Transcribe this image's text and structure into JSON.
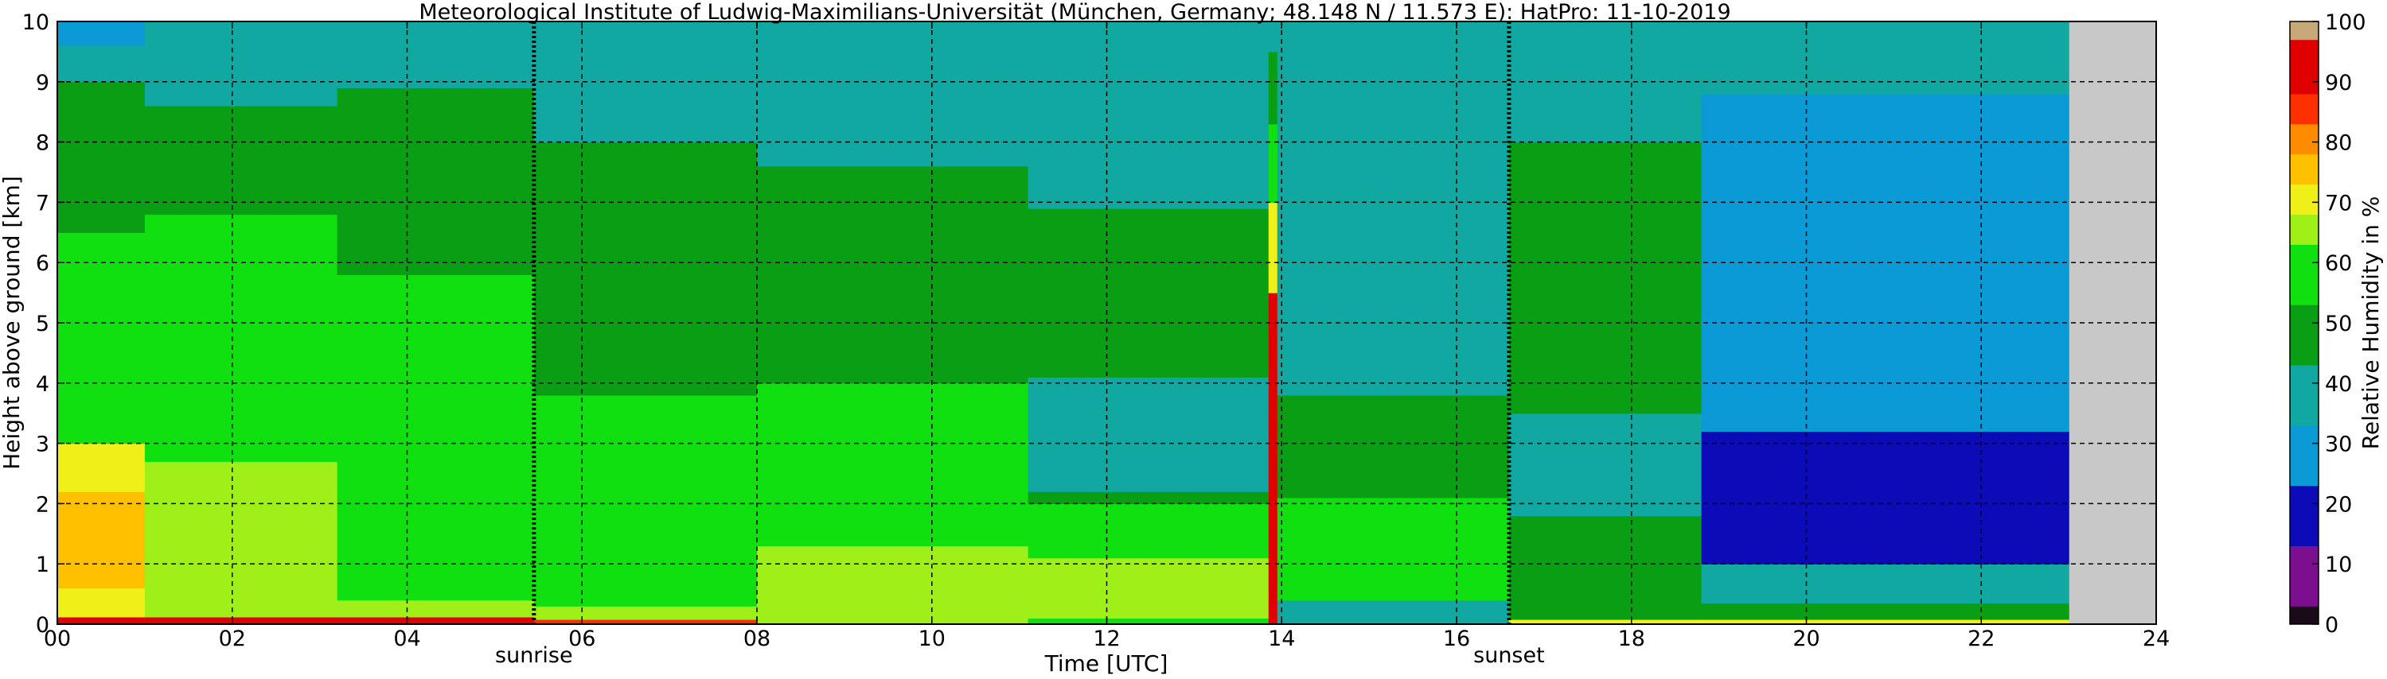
{
  "chart_data": {
    "type": "heatmap",
    "title": "Meteorological Institute of Ludwig-Maximilians-Universität (München, Germany; 48.148 N / 11.573 E):    HatPro: 11-10-2019",
    "xlabel": "Time [UTC]",
    "ylabel": "Height above ground [km]",
    "xlim": [
      0,
      24
    ],
    "ylim": [
      0,
      10
    ],
    "x_ticks": [
      0,
      2,
      4,
      6,
      8,
      10,
      12,
      14,
      16,
      18,
      20,
      22,
      24
    ],
    "x_tick_labels": [
      "00",
      "02",
      "04",
      "06",
      "08",
      "10",
      "12",
      "14",
      "16",
      "18",
      "20",
      "22",
      "24"
    ],
    "y_ticks": [
      0,
      1,
      2,
      3,
      4,
      5,
      6,
      7,
      8,
      9,
      10
    ],
    "y_tick_labels": [
      "0",
      "1",
      "2",
      "3",
      "4",
      "5",
      "6",
      "7",
      "8",
      "9",
      "10"
    ],
    "grid": true,
    "data_end_time": 23.0,
    "markers": [
      {
        "label": "sunrise",
        "time": 5.45
      },
      {
        "label": "sunset",
        "time": 16.6
      }
    ],
    "colorbar": {
      "label": "Relative Humidity in %",
      "min": 0,
      "max": 100,
      "tick_values": [
        0,
        10,
        20,
        30,
        40,
        50,
        60,
        70,
        80,
        90,
        100
      ],
      "tick_labels": [
        "0",
        "10",
        "20",
        "30",
        "40",
        "50",
        "60",
        "70",
        "80",
        "90",
        "100"
      ],
      "levels": [
        {
          "from": 0,
          "to": 3,
          "color": "#1a0a1a"
        },
        {
          "from": 3,
          "to": 13,
          "color": "#7b0f8f"
        },
        {
          "from": 13,
          "to": 23,
          "color": "#0b0bb8"
        },
        {
          "from": 23,
          "to": 33,
          "color": "#0a9ad6"
        },
        {
          "from": 33,
          "to": 43,
          "color": "#10a8a0"
        },
        {
          "from": 43,
          "to": 53,
          "color": "#0a9e14"
        },
        {
          "from": 53,
          "to": 63,
          "color": "#10e010"
        },
        {
          "from": 63,
          "to": 68,
          "color": "#9ef018"
        },
        {
          "from": 68,
          "to": 73,
          "color": "#f0f018"
        },
        {
          "from": 73,
          "to": 78,
          "color": "#ffc000"
        },
        {
          "from": 78,
          "to": 83,
          "color": "#ff8c00"
        },
        {
          "from": 83,
          "to": 88,
          "color": "#ff3000"
        },
        {
          "from": 88,
          "to": 97,
          "color": "#e00000"
        },
        {
          "from": 97,
          "to": 100,
          "color": "#c8a878"
        }
      ]
    },
    "humidity_layers": [
      {
        "t_start": 0.0,
        "t_end": 1.0,
        "layers": [
          [
            0.0,
            0.12,
            92
          ],
          [
            0.12,
            0.6,
            68
          ],
          [
            0.6,
            2.2,
            75
          ],
          [
            2.2,
            3.0,
            68
          ],
          [
            3.0,
            6.5,
            58
          ],
          [
            6.5,
            7.8,
            50
          ],
          [
            7.8,
            9.0,
            45
          ],
          [
            9.0,
            9.6,
            38
          ],
          [
            9.6,
            10.0,
            30
          ]
        ]
      },
      {
        "t_start": 1.0,
        "t_end": 3.2,
        "layers": [
          [
            0.0,
            0.12,
            92
          ],
          [
            0.12,
            0.5,
            67
          ],
          [
            0.5,
            2.7,
            67
          ],
          [
            2.7,
            6.8,
            58
          ],
          [
            6.8,
            8.6,
            50
          ],
          [
            8.6,
            9.4,
            40
          ],
          [
            9.4,
            10.0,
            33
          ]
        ]
      },
      {
        "t_start": 3.2,
        "t_end": 5.45,
        "layers": [
          [
            0.0,
            0.12,
            90
          ],
          [
            0.12,
            0.4,
            66
          ],
          [
            0.4,
            2.3,
            62
          ],
          [
            2.3,
            5.8,
            57
          ],
          [
            5.8,
            7.9,
            50
          ],
          [
            7.9,
            8.9,
            45
          ],
          [
            8.9,
            9.6,
            38
          ],
          [
            9.6,
            10.0,
            33
          ]
        ]
      },
      {
        "t_start": 5.45,
        "t_end": 8.0,
        "layers": [
          [
            0.0,
            0.08,
            85
          ],
          [
            0.08,
            0.3,
            66
          ],
          [
            0.3,
            3.8,
            57
          ],
          [
            3.8,
            6.6,
            52
          ],
          [
            6.6,
            8.0,
            48
          ],
          [
            8.0,
            9.3,
            42
          ],
          [
            9.3,
            10.0,
            36
          ]
        ]
      },
      {
        "t_start": 8.0,
        "t_end": 11.1,
        "layers": [
          [
            0.0,
            0.1,
            64
          ],
          [
            0.1,
            1.3,
            66
          ],
          [
            1.3,
            2.6,
            58
          ],
          [
            2.6,
            4.0,
            56
          ],
          [
            4.0,
            5.0,
            52
          ],
          [
            5.0,
            7.6,
            48
          ],
          [
            7.6,
            9.0,
            42
          ],
          [
            9.0,
            10.0,
            38
          ]
        ]
      },
      {
        "t_start": 11.1,
        "t_end": 13.85,
        "layers": [
          [
            0.0,
            0.1,
            62
          ],
          [
            0.1,
            1.1,
            64
          ],
          [
            1.1,
            2.0,
            58
          ],
          [
            2.0,
            2.2,
            50
          ],
          [
            2.2,
            4.1,
            40
          ],
          [
            4.1,
            6.9,
            48
          ],
          [
            6.9,
            8.8,
            42
          ],
          [
            8.8,
            10.0,
            38
          ]
        ]
      },
      {
        "t_start": 13.85,
        "t_end": 13.95,
        "layers": [
          [
            0.0,
            0.5,
            92
          ],
          [
            0.5,
            5.5,
            88
          ],
          [
            5.5,
            7.0,
            70
          ],
          [
            7.0,
            8.3,
            62
          ],
          [
            8.3,
            9.5,
            52
          ],
          [
            9.5,
            10.0,
            40
          ]
        ]
      },
      {
        "t_start": 13.95,
        "t_end": 16.6,
        "layers": [
          [
            0.0,
            0.4,
            40
          ],
          [
            0.4,
            2.1,
            56
          ],
          [
            2.1,
            3.8,
            46
          ],
          [
            3.8,
            7.0,
            42
          ],
          [
            7.0,
            9.0,
            40
          ],
          [
            9.0,
            10.0,
            36
          ]
        ]
      },
      {
        "t_start": 16.6,
        "t_end": 18.8,
        "layers": [
          [
            0.0,
            0.08,
            70
          ],
          [
            0.08,
            0.5,
            50
          ],
          [
            0.5,
            1.8,
            46
          ],
          [
            1.8,
            3.5,
            41
          ],
          [
            3.5,
            8.0,
            45
          ],
          [
            8.0,
            10.0,
            38
          ]
        ]
      },
      {
        "t_start": 18.8,
        "t_end": 23.0,
        "layers": [
          [
            0.0,
            0.08,
            68
          ],
          [
            0.08,
            0.35,
            48
          ],
          [
            0.35,
            1.0,
            34
          ],
          [
            1.0,
            3.2,
            18
          ],
          [
            3.2,
            5.3,
            24
          ],
          [
            5.3,
            7.2,
            32
          ],
          [
            7.2,
            8.8,
            30
          ],
          [
            8.8,
            10.0,
            33
          ]
        ]
      }
    ]
  }
}
